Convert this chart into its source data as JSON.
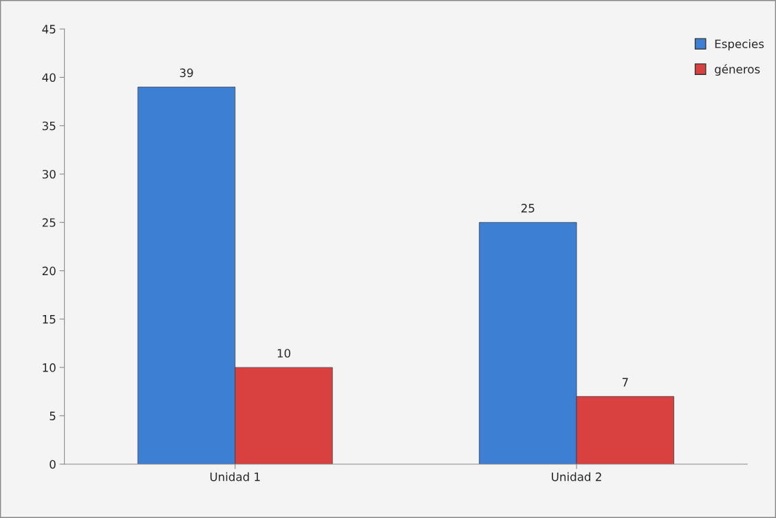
{
  "chart_data": {
    "type": "bar",
    "categories": [
      "Unidad 1",
      "Unidad 2"
    ],
    "series": [
      {
        "name": "Especies",
        "color": "#3d7fd3",
        "values": [
          39,
          25
        ]
      },
      {
        "name": "géneros",
        "color": "#d94140",
        "values": [
          10,
          7
        ]
      }
    ],
    "ylim": [
      0,
      45
    ],
    "yticks": [
      0,
      5,
      10,
      15,
      20,
      25,
      30,
      35,
      40,
      45
    ],
    "grid": false,
    "legend": "top right",
    "data_labels": true
  }
}
